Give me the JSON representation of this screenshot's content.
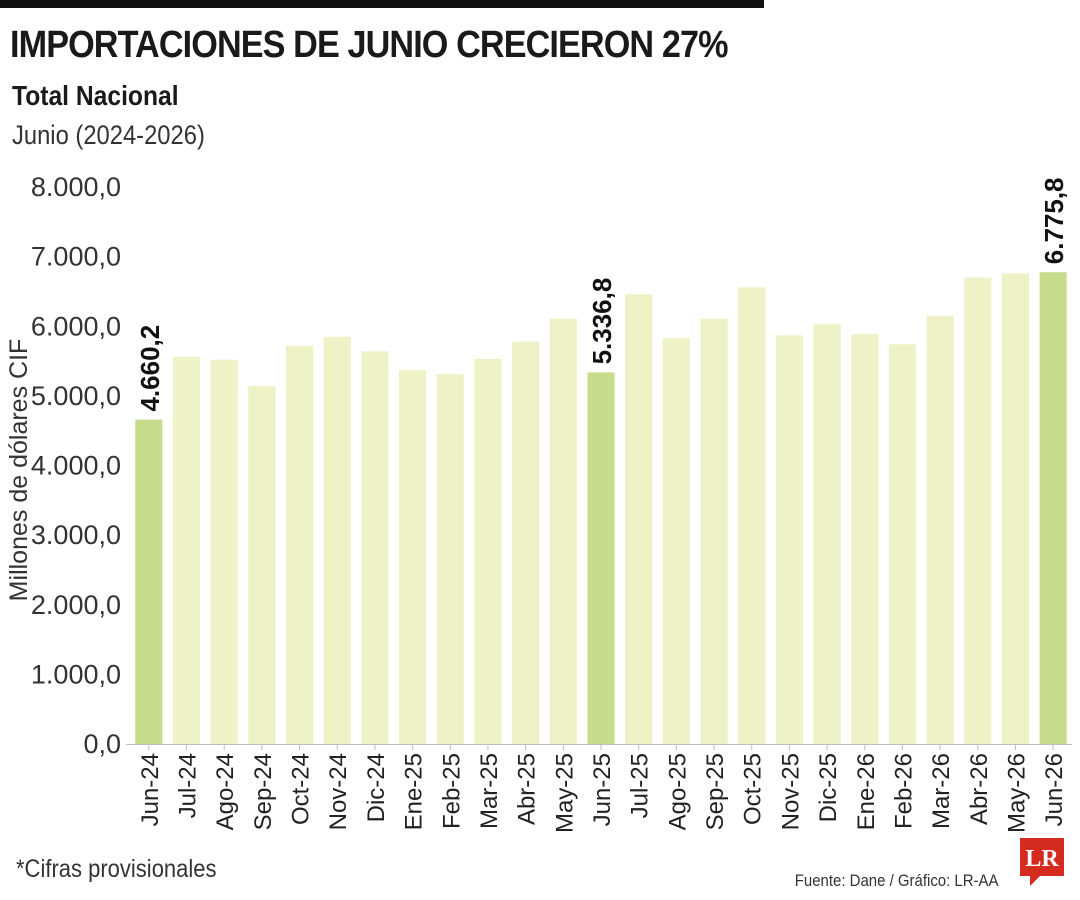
{
  "header": {
    "title": "IMPORTACIONES DE JUNIO CRECIERON 27%",
    "subtitle": "Total Nacional",
    "period": "Junio (2024-2026)"
  },
  "footer": {
    "footnote": "*Cifras provisionales",
    "source": "Fuente: Dane / Gráfico: LR-AA",
    "logo_text": "LR"
  },
  "colors": {
    "bar": "#eef2c6",
    "highlight": "#c6db8c",
    "axis": "#bdbdbd",
    "logo": "#d52b1e"
  },
  "chart_data": {
    "type": "bar",
    "title": "IMPORTACIONES DE JUNIO CRECIERON 27%",
    "ylabel": "Millones de dólares CIF",
    "ylim": [
      0,
      8000
    ],
    "yticks": [
      0,
      1000,
      2000,
      3000,
      4000,
      5000,
      6000,
      7000,
      8000
    ],
    "ytick_labels": [
      "0,0",
      "1.000,0",
      "2.000,0",
      "3.000,0",
      "4.000,0",
      "5.000,0",
      "6.000,0",
      "7.000,0",
      "8.000,0"
    ],
    "grid": false,
    "categories": [
      "Jun-24",
      "Jul-24",
      "Ago-24",
      "Sep-24",
      "Oct-24",
      "Nov-24",
      "Dic-24",
      "Ene-25",
      "Feb-25",
      "Mar-25",
      "Abr-25",
      "May-25",
      "Jun-25",
      "Jul-25",
      "Ago-25",
      "Sep-25",
      "Oct-25",
      "Nov-25",
      "Dic-25",
      "Ene-26",
      "Feb-26",
      "Mar-26",
      "Abr-26",
      "May-26",
      "Jun-26"
    ],
    "values": [
      4660.2,
      5560,
      5520,
      5140,
      5720,
      5850,
      5640,
      5370,
      5310,
      5530,
      5780,
      6110,
      5336.8,
      6460,
      5830,
      6110,
      6560,
      5870,
      6030,
      5890,
      5740,
      6150,
      6700,
      6760,
      6775.8
    ],
    "highlighted": [
      0,
      12,
      24
    ],
    "data_labels": [
      {
        "index": 0,
        "text": "4.660,2"
      },
      {
        "index": 12,
        "text": "5.336,8"
      },
      {
        "index": 24,
        "text": "6.775,8"
      }
    ]
  }
}
